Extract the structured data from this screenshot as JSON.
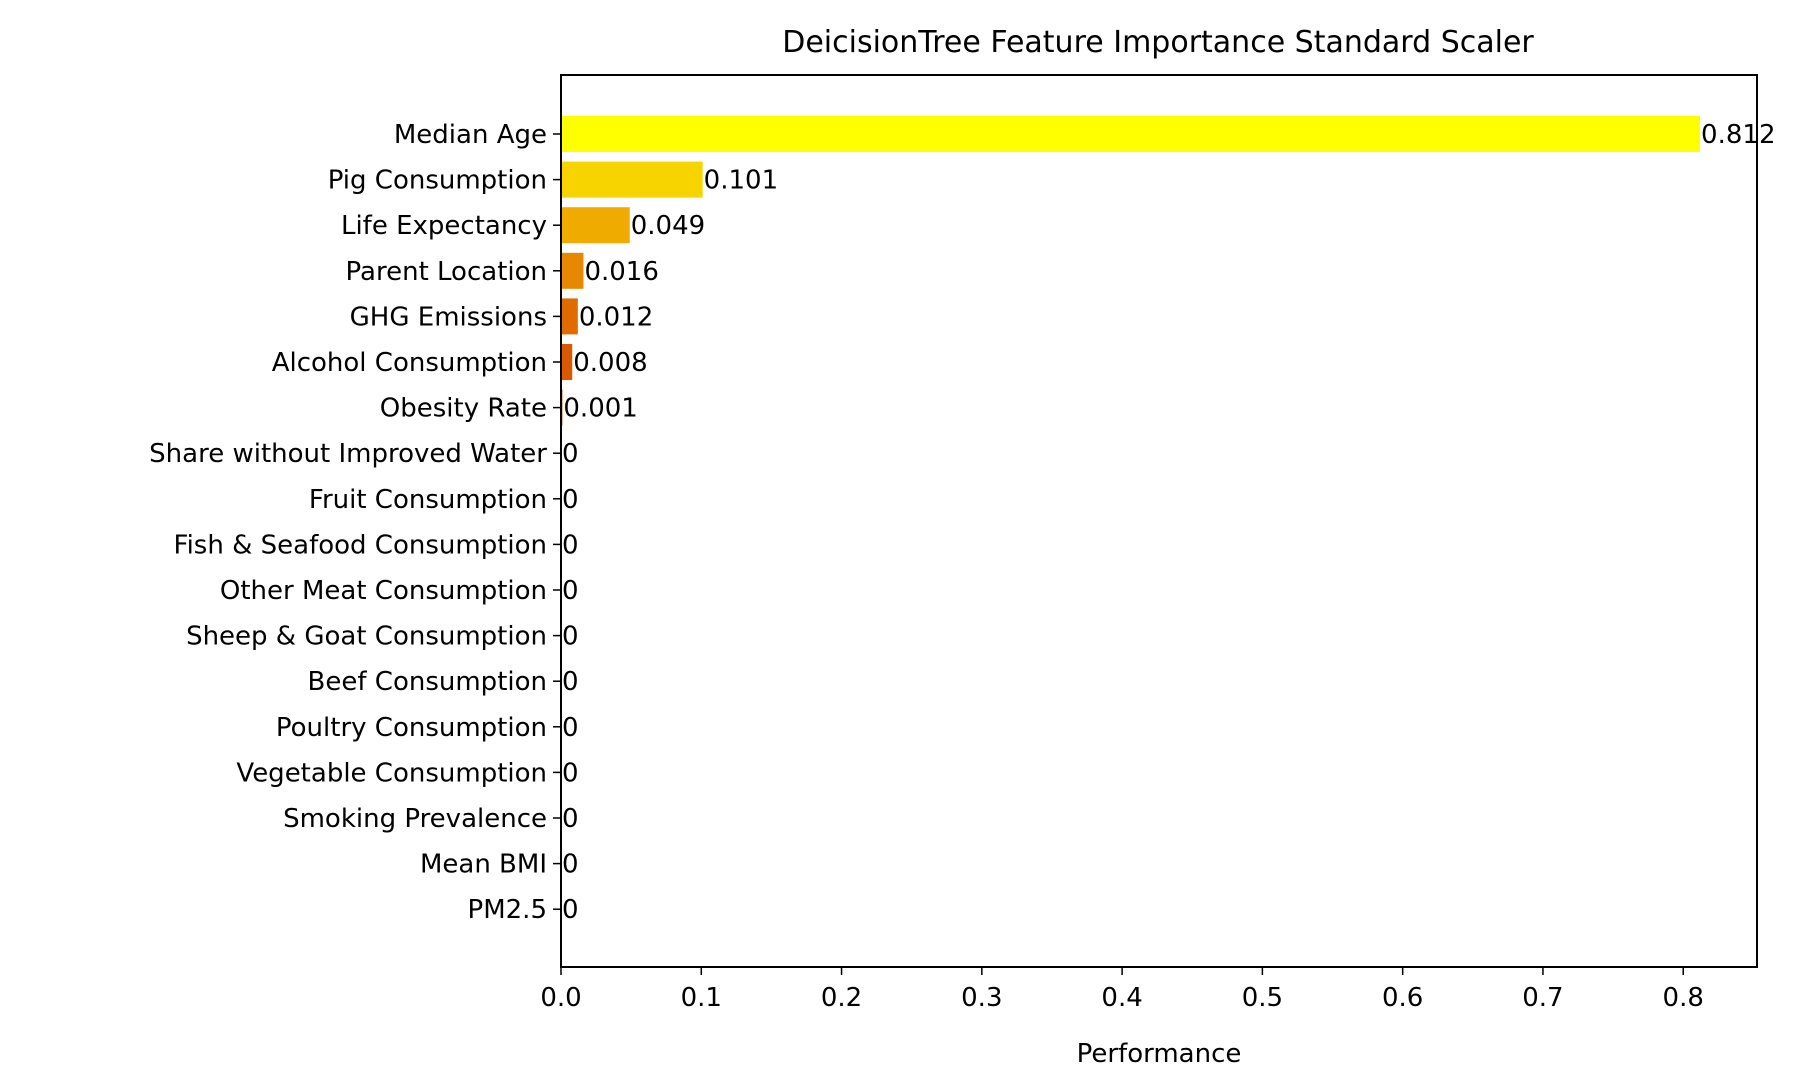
{
  "chart_data": {
    "type": "bar",
    "orientation": "horizontal",
    "title": "DeicisionTree Feature Importance Standard Scaler",
    "xlabel": "Performance",
    "ylabel": "",
    "xlim": [
      0,
      0.8526
    ],
    "xticks": [
      "0.0",
      "0.1",
      "0.2",
      "0.3",
      "0.4",
      "0.5",
      "0.6",
      "0.7",
      "0.8"
    ],
    "grid": false,
    "legend": "none",
    "categories": [
      "Median Age",
      "Pig Consumption",
      "Life Expectancy",
      "Parent Location",
      "GHG Emissions",
      "Alcohol Consumption",
      "Obesity Rate",
      "Share without Improved Water",
      "Fruit Consumption",
      "Fish & Seafood Consumption",
      "Other Meat Consumption",
      "Sheep & Goat Consumption",
      "Beef Consumption",
      "Poultry Consumption",
      "Vegetable Consumption",
      "Smoking Prevalence",
      "Mean BMI",
      "PM2.5"
    ],
    "values": [
      0.812,
      0.101,
      0.049,
      0.016,
      0.012,
      0.008,
      0.001,
      0,
      0,
      0,
      0,
      0,
      0,
      0,
      0,
      0,
      0,
      0
    ],
    "value_labels": [
      "0.812",
      "0.101",
      "0.049",
      "0.016",
      "0.012",
      "0.008",
      "0.001",
      "0",
      "0",
      "0",
      "0",
      "0",
      "0",
      "0",
      "0",
      "0",
      "0",
      "0"
    ],
    "colors": [
      "#ffff00",
      "#f7d400",
      "#f0ab00",
      "#e88700",
      "#e06c00",
      "#d95800",
      "#d24400",
      "#cc3300",
      "#c52500",
      "#be1a00",
      "#b71000",
      "#b00800",
      "#a90400",
      "#a20000",
      "#9b0000",
      "#940000",
      "#8d0000",
      "#860000"
    ]
  }
}
